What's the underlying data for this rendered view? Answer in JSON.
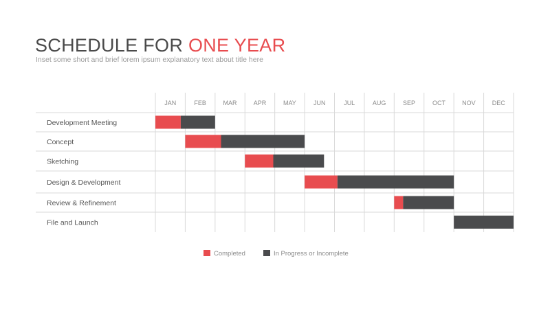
{
  "header": {
    "title_main": "SCHEDULE FOR ",
    "title_accent": "ONE YEAR",
    "subtitle": "Inset some short and brief lorem ipsum explanatory text about title here"
  },
  "colors": {
    "completed": "#e84c4f",
    "in_progress": "#4a4b4d",
    "grid": "#d9d9d9",
    "title": "#4a4a4a"
  },
  "legend": {
    "completed_label": "Completed",
    "in_progress_label": "In Progress or Incomplete"
  },
  "chart_data": {
    "type": "gantt",
    "x_unit": "month",
    "categories": [
      "JAN",
      "FEB",
      "MAR",
      "APR",
      "MAY",
      "JUN",
      "JUL",
      "AUG",
      "SEP",
      "OCT",
      "NOV",
      "DEC"
    ],
    "tasks": [
      {
        "name": "Development Meeting",
        "start": 0.0,
        "completed_end": 0.85,
        "end": 2.0
      },
      {
        "name": "Concept",
        "start": 1.0,
        "completed_end": 2.2,
        "end": 5.0
      },
      {
        "name": "Sketching",
        "start": 3.0,
        "completed_end": 3.95,
        "end": 5.65
      },
      {
        "name": "Design & Development",
        "start": 5.0,
        "completed_end": 6.1,
        "end": 10.0
      },
      {
        "name": "Review & Refinement",
        "start": 8.0,
        "completed_end": 8.3,
        "end": 10.0
      },
      {
        "name": "File and Launch",
        "start": 10.0,
        "completed_end": 10.0,
        "end": 12.0
      }
    ],
    "series": [
      {
        "name": "Completed"
      },
      {
        "name": "In Progress or Incomplete"
      }
    ],
    "grid": true,
    "legend_position": "bottom-center"
  }
}
